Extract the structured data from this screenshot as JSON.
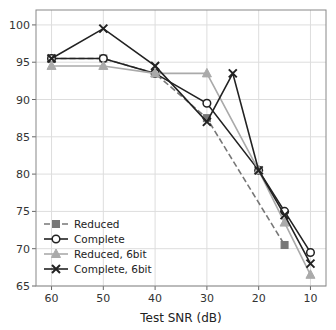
{
  "chart_data": {
    "type": "line",
    "xlabel": "Test SNR (dB)",
    "xlim": [
      63,
      7
    ],
    "xticks": [
      60,
      50,
      40,
      30,
      20,
      10
    ],
    "ylim": [
      65,
      102
    ],
    "yticks": [
      65,
      70,
      75,
      80,
      85,
      90,
      95,
      100
    ],
    "grid": true,
    "legend": "lower left",
    "series": [
      {
        "name": "Reduced",
        "color": "#777777",
        "marker": "square",
        "line_style": "dashed",
        "x": [
          60,
          50,
          40,
          30,
          15
        ],
        "values": [
          95.5,
          95.5,
          93.5,
          87.5,
          70.5
        ]
      },
      {
        "name": "Complete",
        "color": "#222222",
        "marker": "circle",
        "line_style": "solid",
        "x": [
          60,
          50,
          40,
          30,
          20,
          15,
          10
        ],
        "values": [
          95.5,
          95.5,
          93.5,
          89.5,
          80.5,
          75.0,
          69.5
        ]
      },
      {
        "name": "Reduced, 6bit",
        "color": "#aaaaaa",
        "marker": "triangle",
        "line_style": "solid",
        "x": [
          60,
          50,
          40,
          30,
          20,
          15,
          10
        ],
        "values": [
          94.5,
          94.5,
          93.5,
          93.5,
          80.5,
          73.5,
          66.5
        ]
      },
      {
        "name": "Complete, 6bit",
        "color": "#222222",
        "marker": "x",
        "line_style": "solid",
        "x": [
          60,
          50,
          40,
          30,
          25,
          20,
          15,
          10
        ],
        "values": [
          95.5,
          99.5,
          94.5,
          87.0,
          93.5,
          80.5,
          74.5,
          68.0
        ]
      }
    ]
  }
}
